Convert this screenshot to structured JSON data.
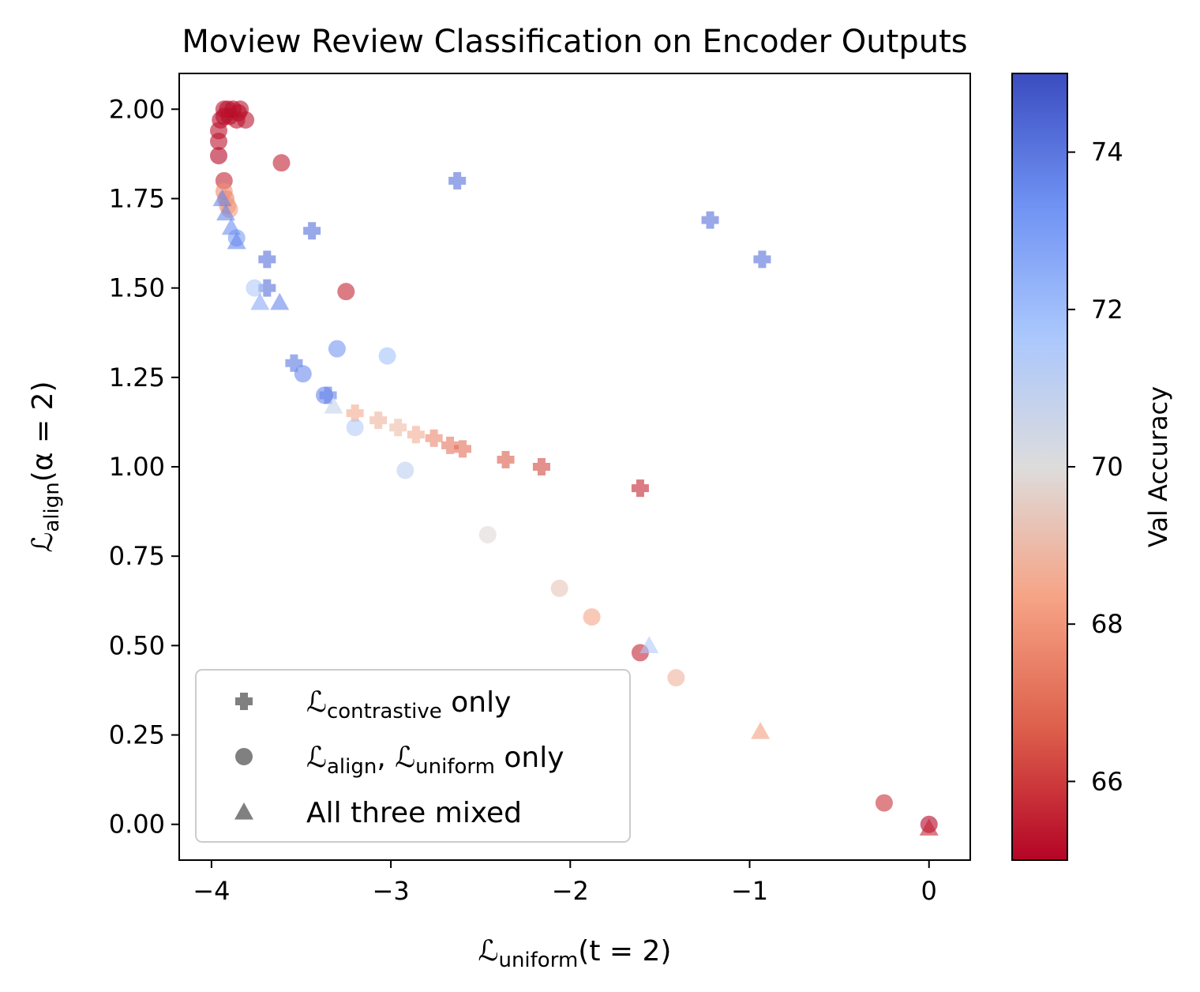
{
  "chart_data": {
    "type": "scatter",
    "title": "Moview Review Classification on Encoder Outputs",
    "xlabel": {
      "main": "ℒ",
      "sub": "uniform",
      "rest": "(t = 2)"
    },
    "ylabel": {
      "main": "ℒ",
      "sub": "align",
      "rest": "(α = 2)"
    },
    "xlim": [
      -4.18,
      0.23
    ],
    "ylim": [
      -0.1,
      2.1
    ],
    "xticks": [
      -4,
      -3,
      -2,
      -1,
      0
    ],
    "xtick_labels": [
      "−4",
      "−3",
      "−2",
      "−1",
      "0"
    ],
    "yticks": [
      0.0,
      0.25,
      0.5,
      0.75,
      1.0,
      1.25,
      1.5,
      1.75,
      2.0
    ],
    "ytick_labels": [
      "0.00",
      "0.25",
      "0.50",
      "0.75",
      "1.00",
      "1.25",
      "1.50",
      "1.75",
      "2.00"
    ],
    "grid": false,
    "legend_position": "lower-left",
    "colorbar": {
      "label": "Val Accuracy",
      "colormap": "coolwarm",
      "min": 65.0,
      "max": 75.0,
      "ticks": [
        66,
        68,
        70,
        72,
        74
      ],
      "tick_labels": [
        "66",
        "68",
        "70",
        "72",
        "74"
      ],
      "stops": [
        "#b40426",
        "#dd5f4b",
        "#f6a385",
        "#dddcdc",
        "#aac7fd",
        "#6f92f3",
        "#3b4cc0"
      ]
    },
    "series": [
      {
        "name": {
          "main": "ℒ",
          "sub": "contrastive",
          "rest": " only"
        },
        "marker": "plus",
        "points": [
          {
            "x": -2.63,
            "y": 1.8,
            "acc": 74.2
          },
          {
            "x": -3.44,
            "y": 1.66,
            "acc": 74.2
          },
          {
            "x": -1.22,
            "y": 1.69,
            "acc": 74.2
          },
          {
            "x": -0.93,
            "y": 1.58,
            "acc": 74.2
          },
          {
            "x": -3.69,
            "y": 1.58,
            "acc": 74.2
          },
          {
            "x": -3.69,
            "y": 1.5,
            "acc": 74.2
          },
          {
            "x": -3.54,
            "y": 1.29,
            "acc": 74.0
          },
          {
            "x": -3.35,
            "y": 1.2,
            "acc": 73.8
          },
          {
            "x": -3.2,
            "y": 1.15,
            "acc": 68.5
          },
          {
            "x": -3.07,
            "y": 1.13,
            "acc": 68.8
          },
          {
            "x": -2.96,
            "y": 1.11,
            "acc": 69.0
          },
          {
            "x": -2.86,
            "y": 1.09,
            "acc": 68.6
          },
          {
            "x": -2.76,
            "y": 1.08,
            "acc": 67.6
          },
          {
            "x": -2.67,
            "y": 1.06,
            "acc": 67.2
          },
          {
            "x": -2.6,
            "y": 1.05,
            "acc": 67.0
          },
          {
            "x": -2.36,
            "y": 1.02,
            "acc": 66.6
          },
          {
            "x": -2.16,
            "y": 1.0,
            "acc": 66.2
          },
          {
            "x": -1.61,
            "y": 0.94,
            "acc": 65.6
          }
        ]
      },
      {
        "name": {
          "main": "ℒ",
          "sub": "align",
          "rest": ", ",
          "main2": "ℒ",
          "sub2": "uniform",
          "rest2": " only"
        },
        "marker": "circle",
        "points": [
          {
            "x": -3.91,
            "y": 2.0,
            "acc": 65.1
          },
          {
            "x": -3.88,
            "y": 2.0,
            "acc": 65.0
          },
          {
            "x": -3.85,
            "y": 1.99,
            "acc": 65.0
          },
          {
            "x": -3.93,
            "y": 1.98,
            "acc": 65.1
          },
          {
            "x": -3.9,
            "y": 1.98,
            "acc": 65.1
          },
          {
            "x": -3.86,
            "y": 1.97,
            "acc": 65.2
          },
          {
            "x": -3.95,
            "y": 1.97,
            "acc": 65.2
          },
          {
            "x": -3.81,
            "y": 1.97,
            "acc": 65.3
          },
          {
            "x": -3.93,
            "y": 2.0,
            "acc": 65.3
          },
          {
            "x": -3.84,
            "y": 2.0,
            "acc": 65.3
          },
          {
            "x": -3.96,
            "y": 1.94,
            "acc": 65.3
          },
          {
            "x": -3.96,
            "y": 1.91,
            "acc": 65.3
          },
          {
            "x": -3.96,
            "y": 1.87,
            "acc": 65.1
          },
          {
            "x": -3.61,
            "y": 1.85,
            "acc": 65.5
          },
          {
            "x": -3.93,
            "y": 1.8,
            "acc": 65.6
          },
          {
            "x": -3.93,
            "y": 1.77,
            "acc": 67.8
          },
          {
            "x": -3.92,
            "y": 1.75,
            "acc": 67.6
          },
          {
            "x": -3.91,
            "y": 1.73,
            "acc": 67.9
          },
          {
            "x": -3.9,
            "y": 1.72,
            "acc": 68.2
          },
          {
            "x": -3.86,
            "y": 1.64,
            "acc": 73.0
          },
          {
            "x": -3.76,
            "y": 1.5,
            "acc": 71.5
          },
          {
            "x": -3.25,
            "y": 1.49,
            "acc": 65.6
          },
          {
            "x": -3.3,
            "y": 1.33,
            "acc": 73.2
          },
          {
            "x": -3.02,
            "y": 1.31,
            "acc": 71.8
          },
          {
            "x": -3.49,
            "y": 1.26,
            "acc": 73.5
          },
          {
            "x": -3.37,
            "y": 1.2,
            "acc": 73.6
          },
          {
            "x": -3.2,
            "y": 1.11,
            "acc": 71.3
          },
          {
            "x": -2.92,
            "y": 0.99,
            "acc": 71.0
          },
          {
            "x": -2.46,
            "y": 0.81,
            "acc": 69.9
          },
          {
            "x": -2.06,
            "y": 0.66,
            "acc": 69.3
          },
          {
            "x": -1.88,
            "y": 0.58,
            "acc": 68.4
          },
          {
            "x": -1.61,
            "y": 0.48,
            "acc": 65.6
          },
          {
            "x": -1.41,
            "y": 0.41,
            "acc": 68.8
          },
          {
            "x": -0.25,
            "y": 0.06,
            "acc": 65.8
          },
          {
            "x": 0.0,
            "y": 0.0,
            "acc": 65.0
          }
        ]
      },
      {
        "name": {
          "main": "",
          "sub": "",
          "rest": "All three mixed"
        },
        "marker": "triangle",
        "points": [
          {
            "x": -3.94,
            "y": 1.75,
            "acc": 73.6
          },
          {
            "x": -3.92,
            "y": 1.71,
            "acc": 73.6
          },
          {
            "x": -3.89,
            "y": 1.67,
            "acc": 73.4
          },
          {
            "x": -3.86,
            "y": 1.63,
            "acc": 73.6
          },
          {
            "x": -3.73,
            "y": 1.46,
            "acc": 72.6
          },
          {
            "x": -3.62,
            "y": 1.46,
            "acc": 73.6
          },
          {
            "x": -3.32,
            "y": 1.17,
            "acc": 70.8
          },
          {
            "x": -1.56,
            "y": 0.5,
            "acc": 71.5
          },
          {
            "x": -0.94,
            "y": 0.26,
            "acc": 68.2
          },
          {
            "x": 0.0,
            "y": -0.01,
            "acc": 65.6
          }
        ]
      }
    ]
  }
}
